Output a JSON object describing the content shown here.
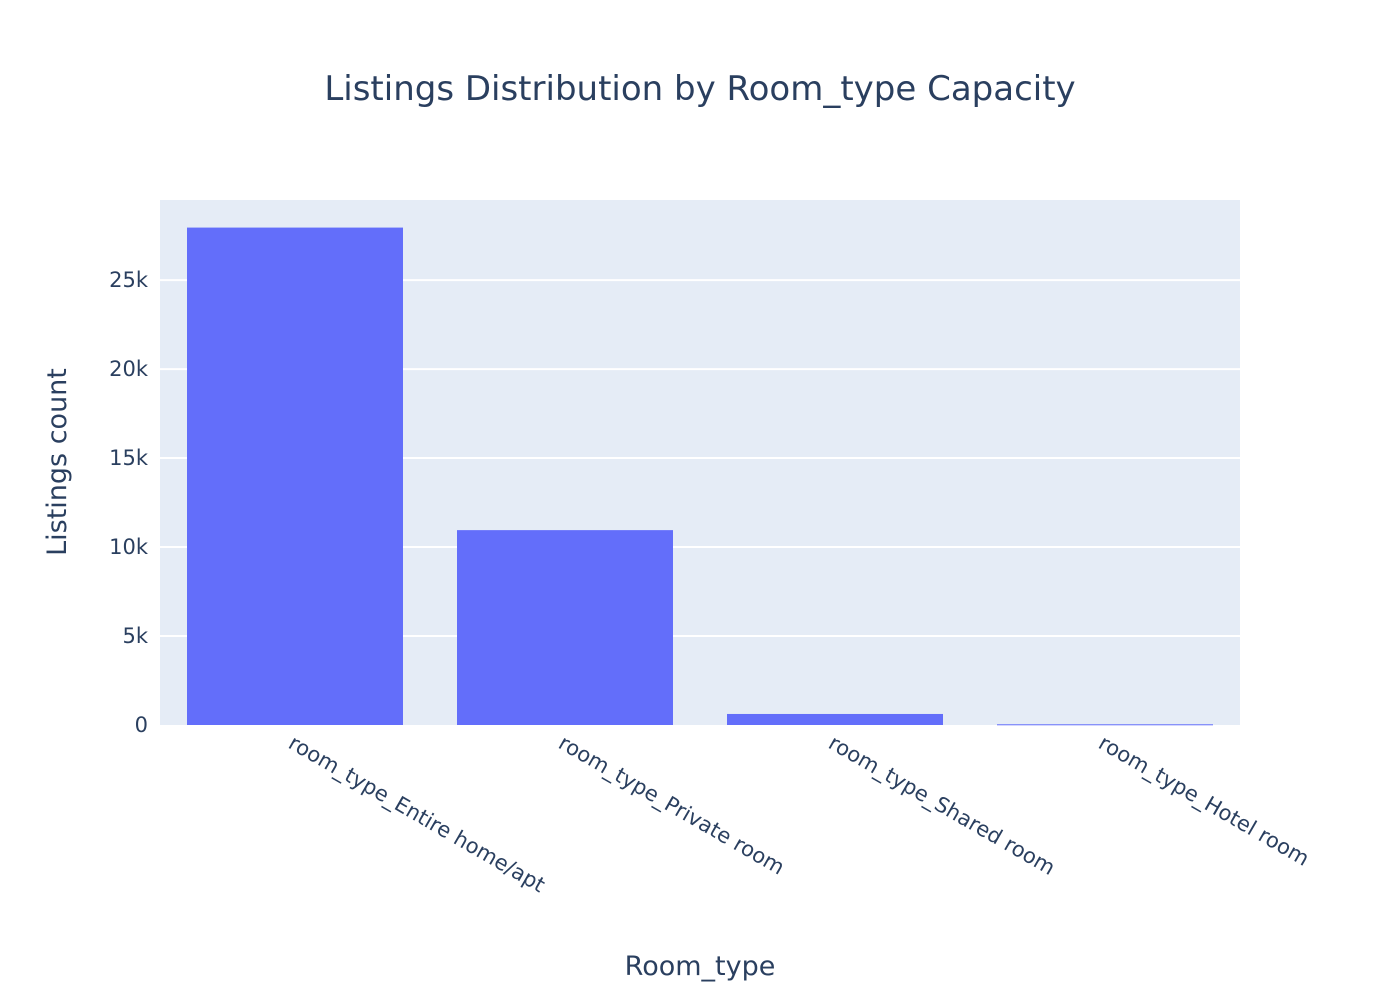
{
  "chart_data": {
    "type": "bar",
    "title": "Listings Distribution by Room_type Capacity",
    "xlabel": "Room_type",
    "ylabel": "Listings count",
    "categories": [
      "room_type_Entire home/apt",
      "room_type_Private room",
      "room_type_Shared room",
      "room_type_Hotel room"
    ],
    "values": [
      27950,
      10950,
      620,
      40
    ],
    "ylim": [
      0,
      29500
    ],
    "yticks": [
      0,
      5000,
      10000,
      15000,
      20000,
      25000
    ],
    "ytick_labels": [
      "0",
      "5k",
      "10k",
      "15k",
      "20k",
      "25k"
    ],
    "grid": true,
    "colors": {
      "bar": "#636efa",
      "plot_bg": "#e5ecf6",
      "grid": "#ffffff",
      "text": "#2a3f5f"
    }
  }
}
